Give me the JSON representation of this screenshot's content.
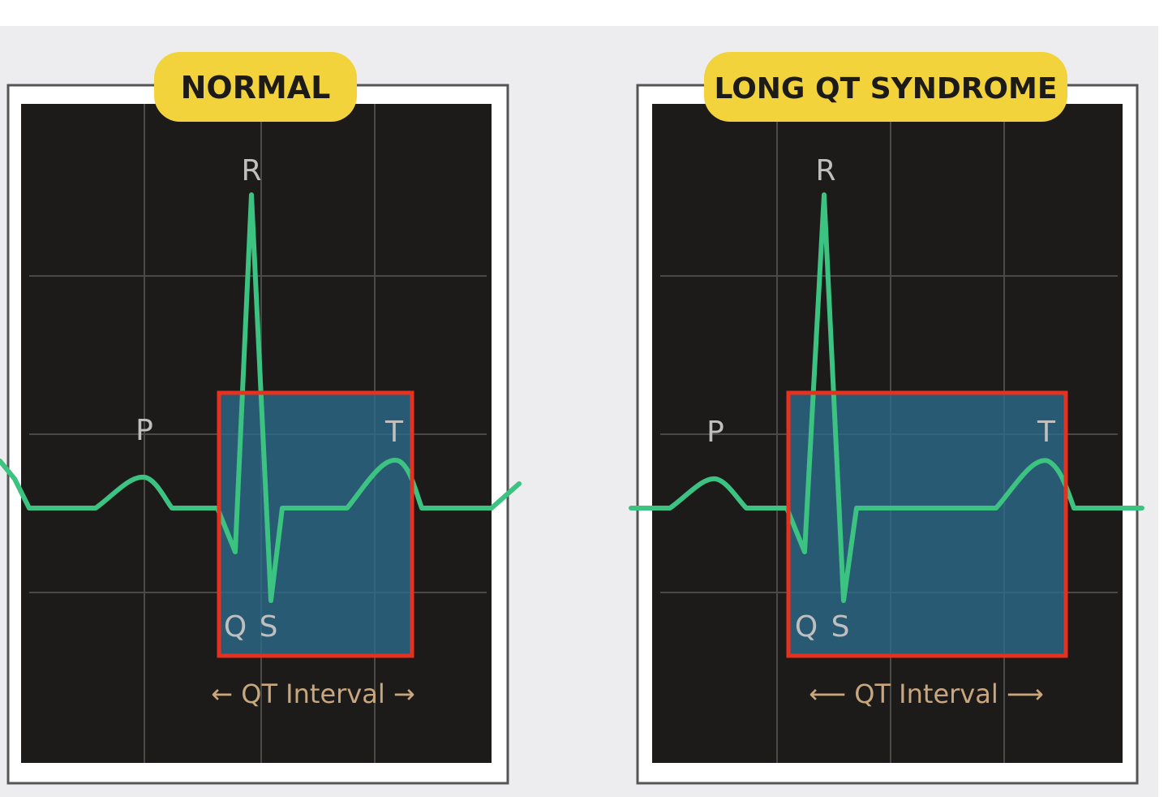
{
  "panels": [
    {
      "title": "NORMAL",
      "labels": {
        "p": "P",
        "r": "R",
        "t": "T",
        "q": "Q",
        "s": "S"
      },
      "interval_label": "← QT Interval →"
    },
    {
      "title": "LONG QT SYNDROME",
      "labels": {
        "p": "P",
        "r": "R",
        "t": "T",
        "q": "Q",
        "s": "S"
      },
      "interval_label": "⟵ QT Interval ⟶"
    }
  ],
  "colors": {
    "background": "#ededf0",
    "screen": "#1c1b19",
    "grid": "#4a4a44",
    "frame": "#ffffff",
    "badge": "#f2d33b",
    "trace": "#3cc281",
    "highlight_fill": "#2c6b8e",
    "highlight_border": "#e6311f",
    "wave_label": "#bfbfbf",
    "interval_label": "#c8a77e"
  }
}
